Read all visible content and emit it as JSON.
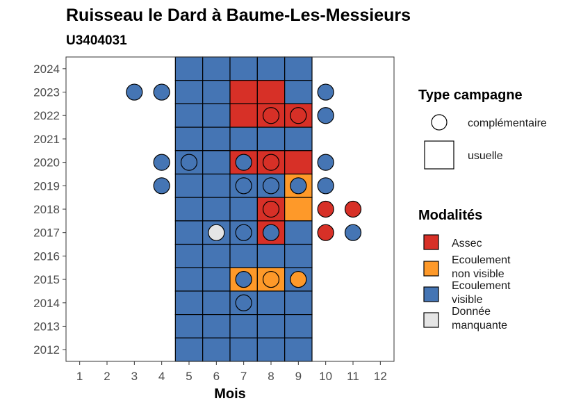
{
  "chart_data": {
    "type": "heatmap",
    "title": "Ruisseau le Dard à Baume-Les-Messieurs",
    "subtitle": "U3404031",
    "xlabel": "Mois",
    "ylabel": "",
    "x_ticks": [
      "1",
      "2",
      "3",
      "4",
      "5",
      "6",
      "7",
      "8",
      "9",
      "10",
      "11",
      "12"
    ],
    "y_ticks": [
      "2012",
      "2013",
      "2014",
      "2015",
      "2016",
      "2017",
      "2018",
      "2019",
      "2020",
      "2021",
      "2022",
      "2023",
      "2024"
    ],
    "xlim": [
      0.5,
      12.5
    ],
    "ylim": [
      2011.5,
      2024.5
    ],
    "legend_position": "right",
    "colors": {
      "Assec": "#d73027",
      "Ecoulement non visible": "#fe9929",
      "Ecoulement visible": "#4575b4",
      "Donnée manquante": "#e5e5e5"
    },
    "legend_type": {
      "title": "Type campagne",
      "entries": [
        {
          "label": "complémentaire",
          "shape": "circle"
        },
        {
          "label": "usuelle",
          "shape": "square"
        }
      ]
    },
    "legend_modalites": {
      "title": "Modalités",
      "entries": [
        {
          "lines": [
            "Assec"
          ],
          "key": "Assec"
        },
        {
          "lines": [
            "Ecoulement",
            "non visible"
          ],
          "key": "Ecoulement non visible"
        },
        {
          "lines": [
            "Ecoulement",
            "visible"
          ],
          "key": "Ecoulement visible"
        },
        {
          "lines": [
            "Donnée",
            "manquante"
          ],
          "key": "Donnée manquante"
        }
      ]
    },
    "tiles": [
      {
        "year": 2024,
        "months": [
          5,
          6,
          7,
          8,
          9
        ],
        "values": [
          "Ecoulement visible",
          "Ecoulement visible",
          "Ecoulement visible",
          "Ecoulement visible",
          "Ecoulement visible"
        ]
      },
      {
        "year": 2023,
        "months": [
          5,
          6,
          7,
          8,
          9
        ],
        "values": [
          "Ecoulement visible",
          "Ecoulement visible",
          "Assec",
          "Assec",
          "Ecoulement visible"
        ]
      },
      {
        "year": 2022,
        "months": [
          5,
          6,
          7,
          8,
          9
        ],
        "values": [
          "Ecoulement visible",
          "Ecoulement visible",
          "Assec",
          "Assec",
          "Assec"
        ]
      },
      {
        "year": 2021,
        "months": [
          5,
          6,
          7,
          8,
          9
        ],
        "values": [
          "Ecoulement visible",
          "Ecoulement visible",
          "Ecoulement visible",
          "Ecoulement visible",
          "Ecoulement visible"
        ]
      },
      {
        "year": 2020,
        "months": [
          5,
          6,
          7,
          8,
          9
        ],
        "values": [
          "Ecoulement visible",
          "Ecoulement visible",
          "Assec",
          "Assec",
          "Assec"
        ]
      },
      {
        "year": 2019,
        "months": [
          5,
          6,
          7,
          8,
          9
        ],
        "values": [
          "Ecoulement visible",
          "Ecoulement visible",
          "Ecoulement visible",
          "Ecoulement visible",
          "Ecoulement non visible"
        ]
      },
      {
        "year": 2018,
        "months": [
          5,
          6,
          7,
          8,
          9
        ],
        "values": [
          "Ecoulement visible",
          "Ecoulement visible",
          "Ecoulement visible",
          "Assec",
          "Ecoulement non visible"
        ]
      },
      {
        "year": 2017,
        "months": [
          5,
          6,
          7,
          8,
          9
        ],
        "values": [
          "Ecoulement visible",
          "Ecoulement visible",
          "Ecoulement visible",
          "Assec",
          "Ecoulement visible"
        ]
      },
      {
        "year": 2016,
        "months": [
          5,
          6,
          7,
          8,
          9
        ],
        "values": [
          "Ecoulement visible",
          "Ecoulement visible",
          "Ecoulement visible",
          "Ecoulement visible",
          "Ecoulement visible"
        ]
      },
      {
        "year": 2015,
        "months": [
          5,
          6,
          7,
          8,
          9
        ],
        "values": [
          "Ecoulement visible",
          "Ecoulement visible",
          "Ecoulement non visible",
          "Ecoulement non visible",
          "Ecoulement visible"
        ]
      },
      {
        "year": 2014,
        "months": [
          5,
          6,
          7,
          8,
          9
        ],
        "values": [
          "Ecoulement visible",
          "Ecoulement visible",
          "Ecoulement visible",
          "Ecoulement visible",
          "Ecoulement visible"
        ]
      },
      {
        "year": 2013,
        "months": [
          5,
          6,
          7,
          8,
          9
        ],
        "values": [
          "Ecoulement visible",
          "Ecoulement visible",
          "Ecoulement visible",
          "Ecoulement visible",
          "Ecoulement visible"
        ]
      },
      {
        "year": 2012,
        "months": [
          5,
          6,
          7,
          8,
          9
        ],
        "values": [
          "Ecoulement visible",
          "Ecoulement visible",
          "Ecoulement visible",
          "Ecoulement visible",
          "Ecoulement visible"
        ]
      }
    ],
    "points": [
      {
        "year": 2023,
        "month": 3,
        "value": "Ecoulement visible"
      },
      {
        "year": 2023,
        "month": 4,
        "value": "Ecoulement visible"
      },
      {
        "year": 2023,
        "month": 10,
        "value": "Ecoulement visible"
      },
      {
        "year": 2022,
        "month": 8,
        "value": "Assec"
      },
      {
        "year": 2022,
        "month": 9,
        "value": "Assec"
      },
      {
        "year": 2022,
        "month": 10,
        "value": "Ecoulement visible"
      },
      {
        "year": 2020,
        "month": 4,
        "value": "Ecoulement visible"
      },
      {
        "year": 2020,
        "month": 5,
        "value": "Ecoulement visible"
      },
      {
        "year": 2020,
        "month": 7,
        "value": "Ecoulement visible"
      },
      {
        "year": 2020,
        "month": 8,
        "value": "Assec"
      },
      {
        "year": 2020,
        "month": 10,
        "value": "Ecoulement visible"
      },
      {
        "year": 2019,
        "month": 4,
        "value": "Ecoulement visible"
      },
      {
        "year": 2019,
        "month": 7,
        "value": "Ecoulement visible"
      },
      {
        "year": 2019,
        "month": 8,
        "value": "Ecoulement visible"
      },
      {
        "year": 2019,
        "month": 9,
        "value": "Ecoulement visible"
      },
      {
        "year": 2019,
        "month": 10,
        "value": "Ecoulement visible"
      },
      {
        "year": 2018,
        "month": 8,
        "value": "Assec"
      },
      {
        "year": 2018,
        "month": 10,
        "value": "Assec"
      },
      {
        "year": 2018,
        "month": 11,
        "value": "Assec"
      },
      {
        "year": 2017,
        "month": 6,
        "value": "Donnée manquante"
      },
      {
        "year": 2017,
        "month": 7,
        "value": "Ecoulement visible"
      },
      {
        "year": 2017,
        "month": 8,
        "value": "Ecoulement visible"
      },
      {
        "year": 2017,
        "month": 10,
        "value": "Assec"
      },
      {
        "year": 2017,
        "month": 11,
        "value": "Ecoulement visible"
      },
      {
        "year": 2015,
        "month": 7,
        "value": "Ecoulement visible"
      },
      {
        "year": 2015,
        "month": 8,
        "value": "Ecoulement non visible"
      },
      {
        "year": 2015,
        "month": 9,
        "value": "Ecoulement non visible"
      },
      {
        "year": 2014,
        "month": 7,
        "value": "Ecoulement visible"
      }
    ]
  }
}
